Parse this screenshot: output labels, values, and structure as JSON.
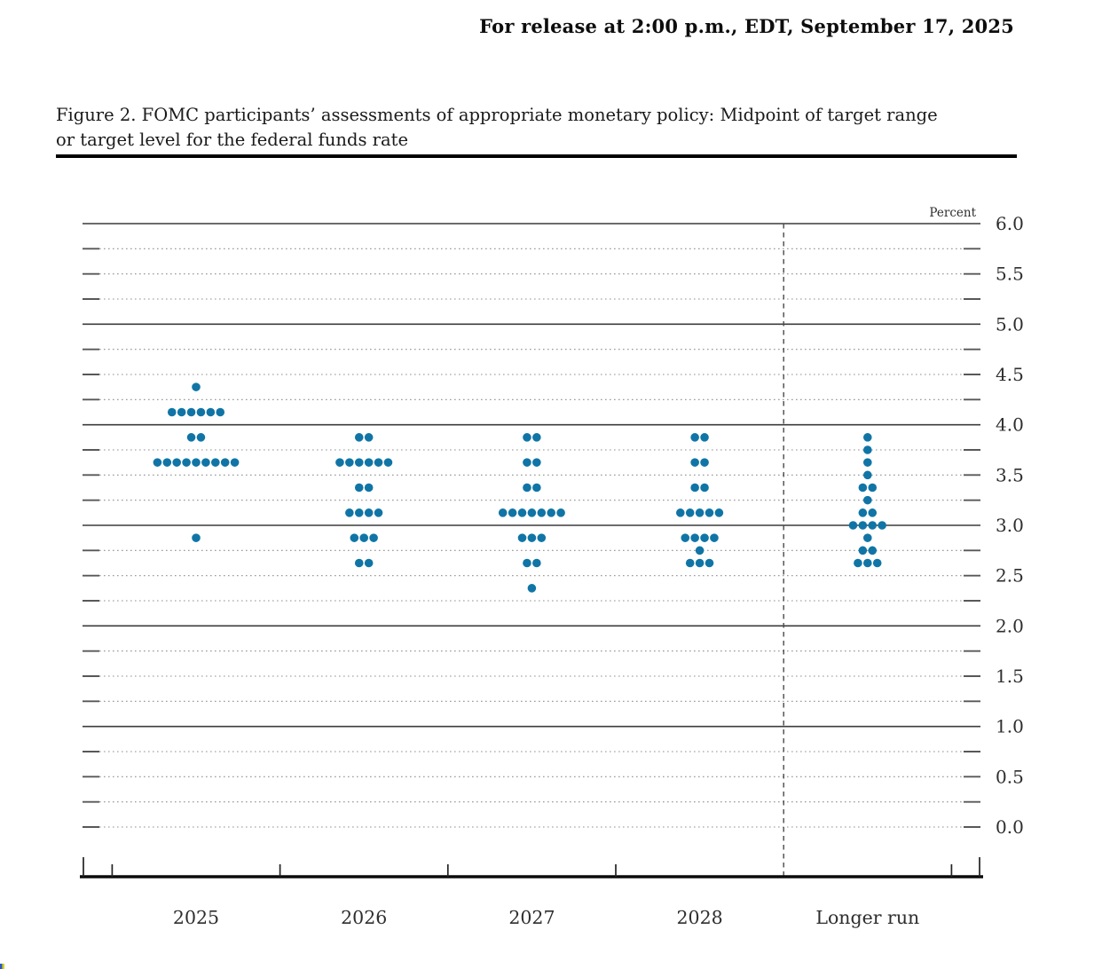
{
  "page": {
    "release_line": "For release at 2:00 p.m., EDT, September 17, 2025",
    "figure_title_line1": "Figure 2.  FOMC participants’ assessments of appropriate monetary policy: Midpoint of target range",
    "figure_title_line2": "or target level for the federal funds rate"
  },
  "chart_data": {
    "type": "scatter",
    "subtype": "dot-plot",
    "title": "Figure 2. FOMC participants’ assessments of appropriate monetary policy: Midpoint of target range or target level for the federal funds rate",
    "unit_label": "Percent",
    "ylim": [
      0.0,
      6.0
    ],
    "y_grid_step": 0.25,
    "y_tick_label_step": 0.5,
    "grid": "solid lines at whole percents, dotted lines at quarter percents",
    "solid_gridlines_at": [
      1.0,
      2.0,
      3.0,
      4.0,
      5.0,
      6.0
    ],
    "y_tick_labels": [
      "6.0",
      "5.5",
      "5.0",
      "4.5",
      "4.0",
      "3.5",
      "3.0",
      "2.5",
      "2.0",
      "1.5",
      "1.0",
      "0.5",
      "0.0"
    ],
    "legend_position": "none",
    "categories": [
      "2025",
      "2026",
      "2027",
      "2028",
      "Longer run"
    ],
    "separator_after_category": "2028",
    "dot_color": "#1075a6",
    "dots_per_category": 19,
    "series": [
      {
        "category": "2025",
        "dots": [
          [
            4.375,
            1
          ],
          [
            4.125,
            6
          ],
          [
            3.875,
            2
          ],
          [
            3.625,
            9
          ],
          [
            2.875,
            1
          ]
        ]
      },
      {
        "category": "2026",
        "dots": [
          [
            3.875,
            2
          ],
          [
            3.625,
            6
          ],
          [
            3.375,
            2
          ],
          [
            3.125,
            4
          ],
          [
            2.875,
            3
          ],
          [
            2.625,
            2
          ]
        ]
      },
      {
        "category": "2027",
        "dots": [
          [
            3.875,
            2
          ],
          [
            3.625,
            2
          ],
          [
            3.375,
            2
          ],
          [
            3.125,
            7
          ],
          [
            2.875,
            3
          ],
          [
            2.625,
            2
          ],
          [
            2.375,
            1
          ]
        ]
      },
      {
        "category": "2028",
        "dots": [
          [
            3.875,
            2
          ],
          [
            3.625,
            2
          ],
          [
            3.375,
            2
          ],
          [
            3.125,
            5
          ],
          [
            2.875,
            4
          ],
          [
            2.75,
            1
          ],
          [
            2.625,
            3
          ]
        ]
      },
      {
        "category": "Longer run",
        "dots": [
          [
            3.875,
            1
          ],
          [
            3.75,
            1
          ],
          [
            3.625,
            1
          ],
          [
            3.5,
            1
          ],
          [
            3.375,
            2
          ],
          [
            3.25,
            1
          ],
          [
            3.125,
            2
          ],
          [
            3.0,
            4
          ],
          [
            2.875,
            1
          ],
          [
            2.75,
            2
          ],
          [
            2.625,
            3
          ]
        ]
      }
    ]
  }
}
